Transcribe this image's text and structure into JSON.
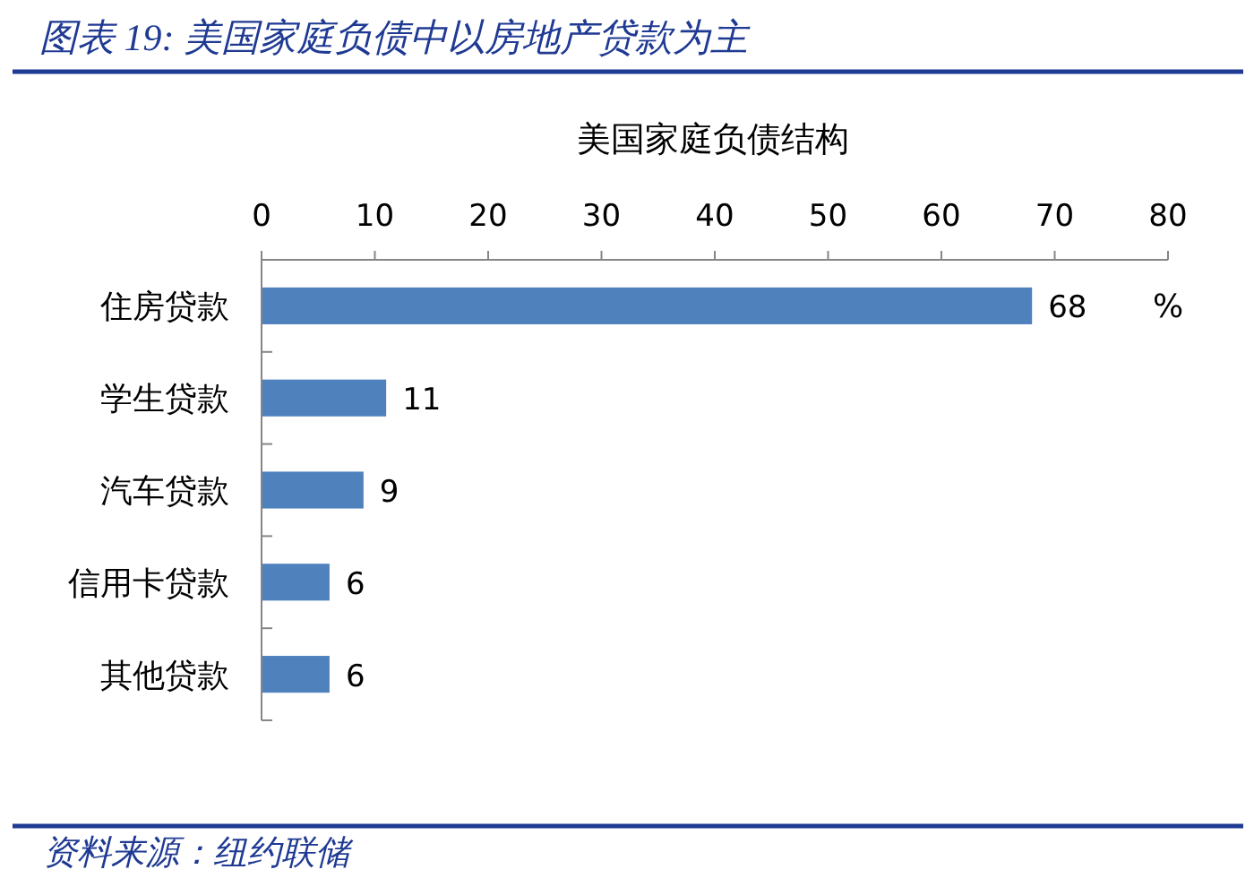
{
  "chart_data": {
    "type": "bar",
    "orientation": "horizontal",
    "title": "图表 19: 美国家庭负债中以房地产贷款为主",
    "subtitle": "美国家庭负债结构",
    "xlabel": "%",
    "categories": [
      "住房贷款",
      "学生贷款",
      "汽车贷款",
      "信用卡贷款",
      "其他贷款"
    ],
    "values": [
      68,
      11,
      9,
      6,
      6
    ],
    "color": "#4f81bd",
    "xlim": [
      0,
      80
    ],
    "xticks": [
      0,
      10,
      20,
      30,
      40,
      50,
      60,
      70,
      80
    ],
    "data_labels": true,
    "annotations": [
      "资料来源：纽约联储"
    ]
  }
}
